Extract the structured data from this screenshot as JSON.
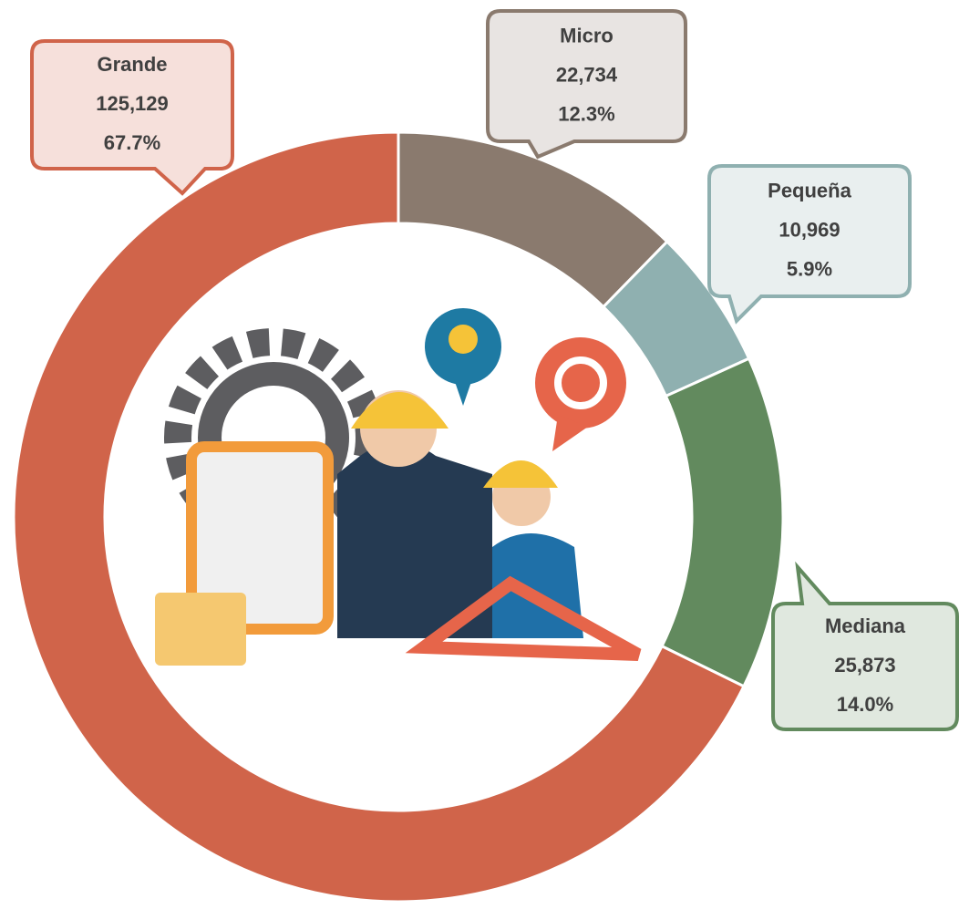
{
  "chart_data": {
    "type": "donut",
    "categories": [
      "Micro",
      "Pequeña",
      "Mediana",
      "Grande"
    ],
    "values": [
      22734,
      10969,
      25873,
      125129
    ],
    "value_labels": [
      "22,734",
      "10,969",
      "25,873",
      "125,129"
    ],
    "percentages": [
      12.3,
      5.9,
      14.0,
      67.7
    ],
    "percentage_labels": [
      "12.3%",
      "5.9%",
      "14.0%",
      "67.7%"
    ],
    "colors": [
      "#8a7a6e",
      "#8fb0b0",
      "#628a5e",
      "#d0644a"
    ]
  }
}
